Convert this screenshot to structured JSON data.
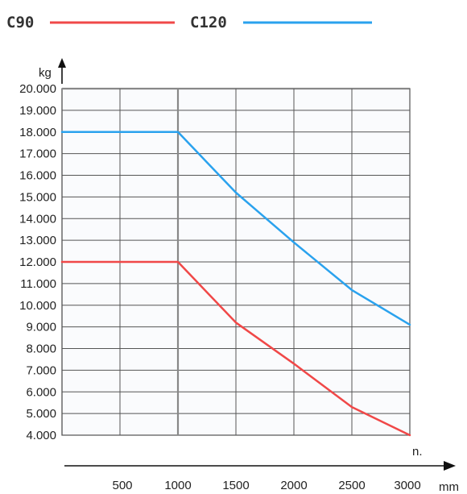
{
  "chart_data": {
    "type": "line",
    "xlabel": "mm",
    "ylabel": "kg",
    "x_axis_extra_label": "n.",
    "x_ticks": [
      "500",
      "1000",
      "1500",
      "2000",
      "2500",
      "3000"
    ],
    "y_ticks": [
      "4.000",
      "5.000",
      "6.000",
      "7.000",
      "8.000",
      "9.000",
      "10.000",
      "11.000",
      "12.000",
      "13.000",
      "14.000",
      "15.000",
      "16.000",
      "17.000",
      "18.000",
      "19.000",
      "20.000"
    ],
    "xlim": [
      0,
      3000
    ],
    "ylim": [
      4000,
      20000
    ],
    "grid": true,
    "legend_position": "top",
    "series": [
      {
        "name": "C90",
        "color": "#f04848",
        "points": [
          [
            0,
            12000
          ],
          [
            1000,
            12000
          ],
          [
            1500,
            9200
          ],
          [
            2000,
            7300
          ],
          [
            2500,
            5300
          ],
          [
            3000,
            4000
          ]
        ]
      },
      {
        "name": "C120",
        "color": "#2aa2ee",
        "points": [
          [
            0,
            18000
          ],
          [
            1000,
            18000
          ],
          [
            1500,
            15200
          ],
          [
            2000,
            12900
          ],
          [
            2500,
            10700
          ],
          [
            3000,
            9100
          ]
        ]
      }
    ]
  }
}
